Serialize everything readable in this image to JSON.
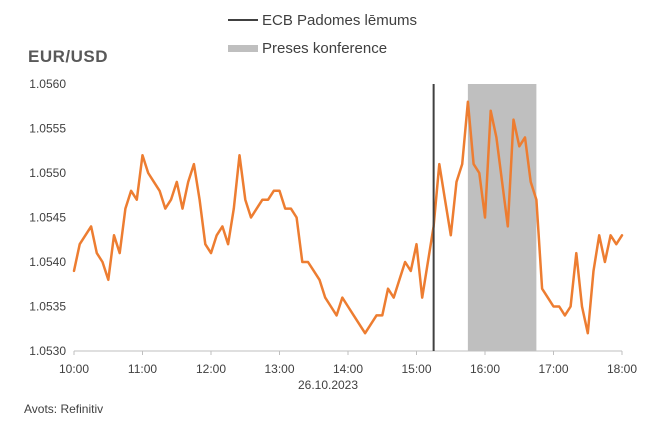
{
  "chart_data": {
    "type": "line",
    "title": "EUR/USD",
    "xlabel": "",
    "ylabel": "",
    "date_label": "26.10.2023",
    "source": "Avots: Refinitiv",
    "x_ticks": [
      "10:00",
      "11:00",
      "12:00",
      "13:00",
      "14:00",
      "15:00",
      "16:00",
      "17:00",
      "18:00"
    ],
    "y_ticks": [
      "1.0530",
      "1.0535",
      "1.0540",
      "1.0545",
      "1.0550",
      "1.0555",
      "1.0560"
    ],
    "xlim": [
      "10:00",
      "18:00"
    ],
    "ylim": [
      1.053,
      1.056
    ],
    "grid": false,
    "legend": {
      "position": "top",
      "items": [
        {
          "label": "ECB Padomes lēmums",
          "kind": "line",
          "color": "#404040"
        },
        {
          "label": "Preses konference",
          "kind": "band",
          "color": "#bfbfbf"
        }
      ]
    },
    "annotations": {
      "decision_time": "15:15",
      "press_conference": [
        "15:45",
        "16:45"
      ]
    },
    "colors": {
      "series": "#ed7d31",
      "decision_line": "#404040",
      "band": "#bfbfbf",
      "axis": "#bfbfbf"
    },
    "series": [
      {
        "x": [
          "10:00",
          "10:05",
          "10:10",
          "10:15",
          "10:20",
          "10:25",
          "10:30",
          "10:35",
          "10:40",
          "10:45",
          "10:50",
          "10:55",
          "11:00",
          "11:05",
          "11:10",
          "11:15",
          "11:20",
          "11:25",
          "11:30",
          "11:35",
          "11:40",
          "11:45",
          "11:50",
          "11:55",
          "12:00",
          "12:05",
          "12:10",
          "12:15",
          "12:20",
          "12:25",
          "12:30",
          "12:35",
          "12:40",
          "12:45",
          "12:50",
          "12:55",
          "13:00",
          "13:05",
          "13:10",
          "13:15",
          "13:20",
          "13:25",
          "13:30",
          "13:35",
          "13:40",
          "13:45",
          "13:50",
          "13:55",
          "14:00",
          "14:05",
          "14:10",
          "14:15",
          "14:20",
          "14:25",
          "14:30",
          "14:35",
          "14:40",
          "14:45",
          "14:50",
          "14:55",
          "15:00",
          "15:05",
          "15:10",
          "15:15",
          "15:20",
          "15:25",
          "15:30",
          "15:35",
          "15:40",
          "15:45",
          "15:50",
          "15:55",
          "16:00",
          "16:05",
          "16:10",
          "16:15",
          "16:20",
          "16:25",
          "16:30",
          "16:35",
          "16:40",
          "16:45",
          "16:50",
          "16:55",
          "17:00",
          "17:05",
          "17:10",
          "17:15",
          "17:20",
          "17:25",
          "17:30",
          "17:35",
          "17:40",
          "17:45",
          "17:50",
          "17:55",
          "18:00"
        ],
        "values": [
          1.0539,
          1.0542,
          1.0543,
          1.0544,
          1.0541,
          1.054,
          1.0538,
          1.0543,
          1.0541,
          1.0546,
          1.0548,
          1.0547,
          1.0552,
          1.055,
          1.0549,
          1.0548,
          1.0546,
          1.0547,
          1.0549,
          1.0546,
          1.0549,
          1.0551,
          1.0547,
          1.0542,
          1.0541,
          1.0543,
          1.0544,
          1.0542,
          1.0546,
          1.0552,
          1.0547,
          1.0545,
          1.0546,
          1.0547,
          1.0547,
          1.0548,
          1.0548,
          1.0546,
          1.0546,
          1.0545,
          1.054,
          1.054,
          1.0539,
          1.0538,
          1.0536,
          1.0535,
          1.0534,
          1.0536,
          1.0535,
          1.0534,
          1.0533,
          1.0532,
          1.0533,
          1.0534,
          1.0534,
          1.0537,
          1.0536,
          1.0538,
          1.054,
          1.0539,
          1.0542,
          1.0536,
          1.054,
          1.0544,
          1.0551,
          1.0547,
          1.0543,
          1.0549,
          1.0551,
          1.0558,
          1.0551,
          1.055,
          1.0545,
          1.0557,
          1.0554,
          1.0549,
          1.0544,
          1.0556,
          1.0553,
          1.0554,
          1.0549,
          1.0547,
          1.0537,
          1.0536,
          1.0535,
          1.0535,
          1.0534,
          1.0535,
          1.0541,
          1.0535,
          1.0532,
          1.0539,
          1.0543,
          1.054,
          1.0543,
          1.0542,
          1.0543
        ]
      }
    ]
  }
}
